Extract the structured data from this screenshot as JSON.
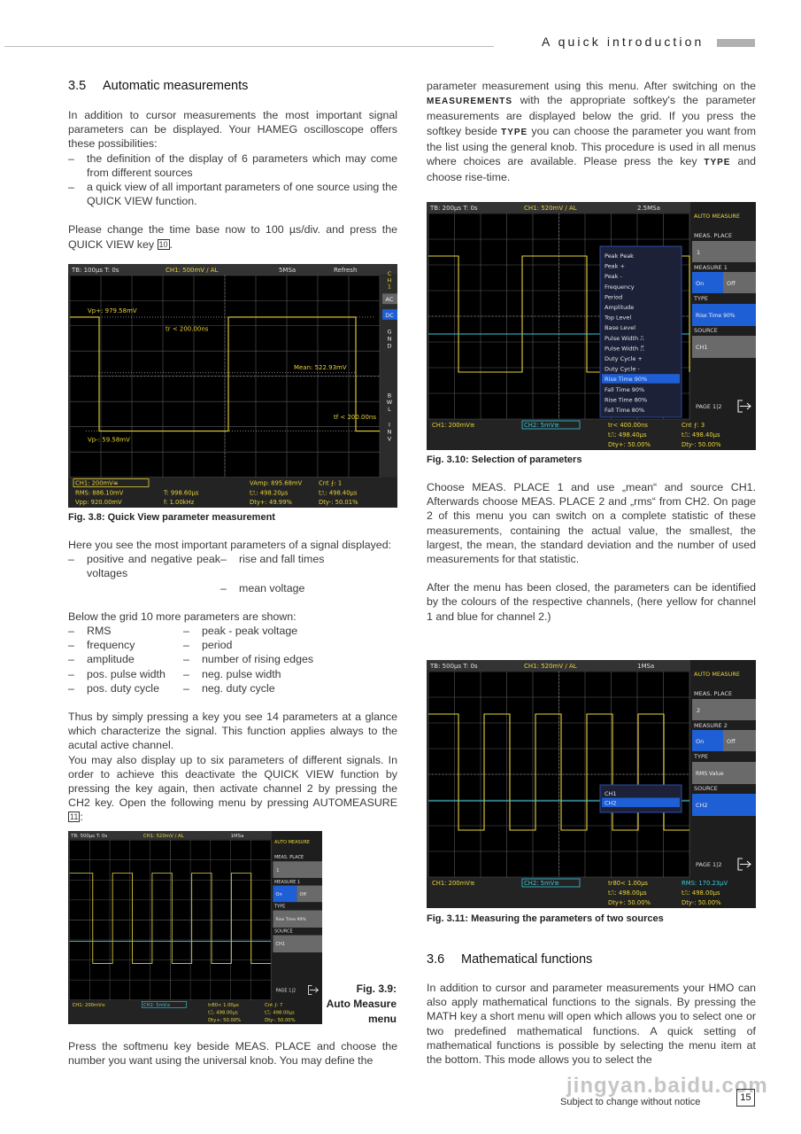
{
  "header": {
    "title": "A quick introduction"
  },
  "section_35": {
    "number": "3.5",
    "title": "Automatic measurements"
  },
  "left": {
    "p1": "In addition to cursor measurements the most important signal parameters can be displayed. Your HAMEG oscilloscope offers these possibilities:",
    "bullets": [
      "the definition of the display of 6 parameters which may come from different sources",
      "a quick view of all important parameters of one source using the QUICK VIEW function."
    ],
    "p2a": "Please change the time base now to 100 µs/div. and press the QUICK VIEW key ",
    "p2key": "10",
    "p2b": ".",
    "p3": "Here you see the most important parameters of a signal displayed:",
    "list1": [
      "positive and negative peak voltages",
      "rise and fall times",
      "",
      "mean voltage"
    ],
    "p4": "Below the grid 10 more parameters are shown:",
    "list2": [
      "RMS",
      "peak - peak voltage",
      "frequency",
      "period",
      "amplitude",
      "number of rising edges",
      "pos. pulse width",
      "neg. pulse width",
      "pos. duty cycle",
      "neg. duty cycle"
    ],
    "p5": "Thus by simply pressing a key you see 14 parameters at a glance which characterize the signal. This function applies always to the acutal active channel.",
    "p6a": "You may also display up to six parameters of different signals. In order to achieve this deactivate the QUICK VIEW function by pressing the key again, then activate channel 2 by pressing the CH2 key. Open the following menu by pressing AUTOMEASURE ",
    "p6key": "11",
    "p6b": ":",
    "p7": "Press the softmenu key beside MEAS. PLACE and choose the number you want using the universal knob. You may define the"
  },
  "right": {
    "p1a": "parameter measurement using this menu. After switching on the ",
    "p1k1": "MEASUREMENTS",
    "p1b": " with the appropriate softkey's the parameter measurements are displayed below the grid. If you press the softkey beside ",
    "p1k2": "TYPE",
    "p1c": " you can choose the parameter you want from the list using the general knob. This procedure is used in all menus where choices are available. Please press the key ",
    "p1k3": "TYPE",
    "p1d": " and choose rise-time.",
    "p2": "Choose MEAS. PLACE 1 and use „mean“ and source CH1. Afterwards choose MEAS. PLACE 2 and „rms“ from CH2. On page 2 of this menu you can switch on a complete statistic of these measurements, containing the actual value, the smallest, the largest, the mean, the standard deviation and the number of used measurements for that statistic.",
    "p3": "After the menu has been closed, the parameters can be identified by the colours of the respective channels, (here yellow for channel 1 and blue for channel 2.)",
    "p4": "In addition to cursor and parameter measurements your HMO can also apply mathematical functions to the signals. By pressing the MATH key a short menu will open which allows you to select one or two predefined mathematical functions. A quick setting of mathematical functions is possible by selecting the menu item at the bottom. This mode allows you to select the"
  },
  "section_36": {
    "number": "3.6",
    "title": "Mathematical functions"
  },
  "captions": {
    "fig38": "Fig. 3.8: Quick View parameter measurement",
    "fig39a": "Fig. 3.9:",
    "fig39b": "Auto Measure",
    "fig39c": "menu",
    "fig310": "Fig. 3.10: Selection of parameters",
    "fig311": "Fig. 3.11: Measuring the parameters of two sources"
  },
  "fig38": {
    "top": [
      "TB: 100µs  T: 0s",
      "CH1: 500mV / AL",
      "5MSa",
      "Refresh"
    ],
    "side": [
      "C",
      "H",
      "1",
      "AC",
      "DC",
      "G",
      "N",
      "D",
      "B",
      "W",
      "L",
      "I",
      "N",
      "V"
    ],
    "labels": [
      "Vp+: 979.58mV",
      "tr < 200.00ns",
      "Mean: 522.93mV",
      "tf < 200.00ns",
      "Vp-: 59.58mV"
    ],
    "bottom": [
      "CH1: 200mV≅",
      "RMS: 886.10mV",
      "Vpp: 920.00mV",
      "T: 998.60µs",
      "f: 1.00kHz",
      "VAmp: 895.68mV",
      "t⎍: 498.20µs",
      "Dty+: 49.99%",
      "Cnt ⨍: 1",
      "t⎍: 498.40µs",
      "Dty-: 50.01%"
    ]
  },
  "fig39": {
    "top": [
      "TB: 500µs  T: 0s",
      "CH1: 520mV / AL",
      "1MSa"
    ],
    "menu": {
      "title": "AUTO MEASURE",
      "place_label": "MEAS. PLACE",
      "place": "1",
      "measure_label": "MEASURE 1",
      "on": "On",
      "off": "Off",
      "type_label": "TYPE",
      "type": "Rise Time 90%",
      "source_label": "SOURCE",
      "source": "CH1",
      "page": "PAGE 1|2"
    },
    "bottom": [
      "CH1: 200mV≅",
      "CH2: 5mV≅",
      "tr80< 1.00µs",
      "t⎍: 498.00µs",
      "Dty+: 50.00%",
      "Cnt ⨍: 7",
      "t⎍: 498.00µs",
      "Dty-: 50.00%"
    ]
  },
  "fig310": {
    "top": [
      "TB: 200µs  T: 0s",
      "CH1: 520mV / AL",
      "2.5MSa"
    ],
    "menu": {
      "title": "AUTO MEASURE",
      "place_label": "MEAS. PLACE",
      "place": "1",
      "measure_label": "MEASURE 1",
      "on": "On",
      "off": "Off",
      "type_label": "TYPE",
      "type": "Rise Time 90%",
      "source_label": "SOURCE",
      "source": "CH1",
      "page": "PAGE 1|2"
    },
    "list": [
      "Peak Peak",
      "Peak +",
      "Peak -",
      "Frequency",
      "Period",
      "Amplitude",
      "Top Level",
      "Base Level",
      "Pulse Width ⎍",
      "Pulse Width ⎍̅",
      "Duty Cycle +",
      "Duty Cycle -",
      "Rise Time 90%",
      "Fall Time 90%",
      "Rise Time 80%",
      "Fall Time 80%"
    ],
    "list_selected": "Rise Time 90%",
    "bottom": [
      "CH1: 200mV≅",
      "CH2: 5mV≅",
      "tr< 400.00ns",
      "t⎍: 498.40µs",
      "Dty+: 50.00%",
      "Cnt ⨍: 3",
      "t⎍: 498.40µs",
      "Dty-: 50.00%"
    ]
  },
  "fig311": {
    "top": [
      "TB: 500µs  T: 0s",
      "CH1: 520mV / AL",
      "1MSa"
    ],
    "menu": {
      "title": "AUTO MEASURE",
      "place_label": "MEAS. PLACE",
      "place": "2",
      "measure_label": "MEASURE 2",
      "on": "On",
      "off": "Off",
      "type_label": "TYPE",
      "type": "RMS Value",
      "source_label": "SOURCE",
      "source": "CH2",
      "page": "PAGE 1|2"
    },
    "list": [
      "CH1",
      "CH2"
    ],
    "list_selected": "CH2",
    "bottom": [
      "CH1: 200mV≅",
      "CH2: 5mV≅",
      "tr80< 1.00µs",
      "t⎍: 498.00µs",
      "Dty+: 50.00%",
      "RMS: 170.23µV",
      "t⎍: 498.00µs",
      "Dty-: 50.00%"
    ]
  },
  "colors": {
    "ch1": "#e8d33a",
    "ch2": "#38c9d9",
    "menu_active": "#1f5fd6",
    "menu_button": "#6a6a6a"
  },
  "footer": {
    "notice": "Subject to change without notice",
    "page": "15"
  },
  "watermark": "jingyan.baidu.com"
}
